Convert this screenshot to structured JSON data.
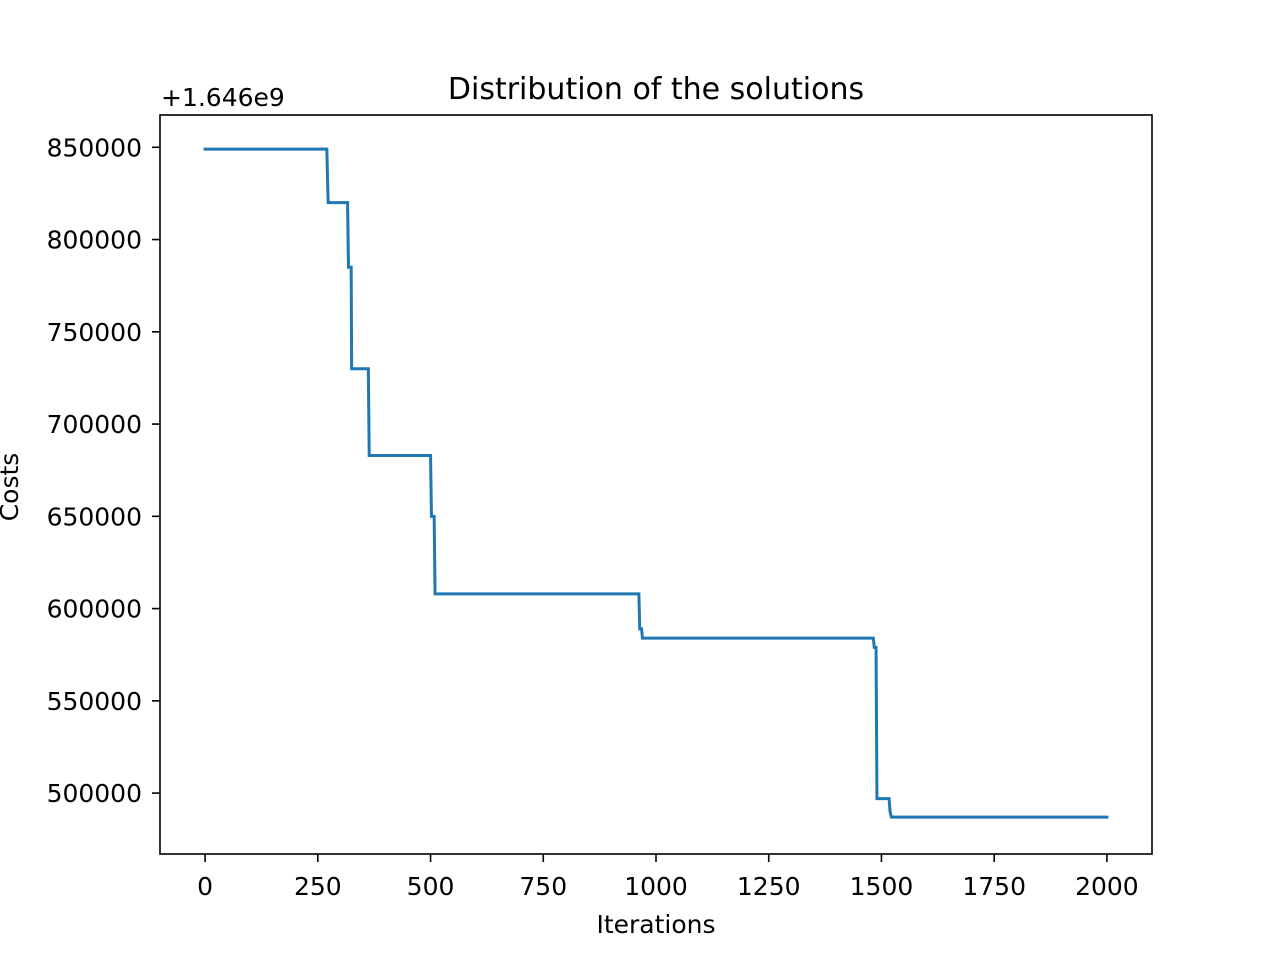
{
  "chart_data": {
    "type": "line",
    "title": "Distribution of the solutions",
    "xlabel": "Iterations",
    "ylabel": "Costs",
    "y_offset_label": "+1.646e9",
    "xlim": [
      -100,
      2100
    ],
    "ylim": [
      467000,
      867500
    ],
    "x_ticks": [
      0,
      250,
      500,
      750,
      1000,
      1250,
      1500,
      1750,
      2000
    ],
    "y_ticks": [
      500000,
      550000,
      600000,
      650000,
      700000,
      750000,
      800000,
      850000
    ],
    "x_tick_labels": [
      "0",
      "250",
      "500",
      "750",
      "1000",
      "1250",
      "1500",
      "1750",
      "2000"
    ],
    "y_tick_labels": [
      "500000",
      "550000",
      "600000",
      "650000",
      "700000",
      "750000",
      "800000",
      "850000"
    ],
    "grid": false,
    "series": [
      {
        "color": "#1f77b4",
        "points": [
          [
            0,
            849000
          ],
          [
            270,
            849000
          ],
          [
            272,
            828000
          ],
          [
            273,
            820000
          ],
          [
            316,
            820000
          ],
          [
            318,
            785000
          ],
          [
            322,
            785000
          ],
          [
            324,
            785000
          ],
          [
            325,
            730000
          ],
          [
            362,
            730000
          ],
          [
            364,
            683000
          ],
          [
            500,
            683000
          ],
          [
            502,
            650000
          ],
          [
            508,
            650000
          ],
          [
            510,
            608000
          ],
          [
            962,
            608000
          ],
          [
            964,
            589000
          ],
          [
            968,
            589000
          ],
          [
            970,
            584000
          ],
          [
            1482,
            584000
          ],
          [
            1484,
            579000
          ],
          [
            1488,
            579000
          ],
          [
            1490,
            497000
          ],
          [
            1517,
            497000
          ],
          [
            1519,
            490000
          ],
          [
            1522,
            487000
          ],
          [
            2000,
            487000
          ]
        ]
      }
    ]
  }
}
